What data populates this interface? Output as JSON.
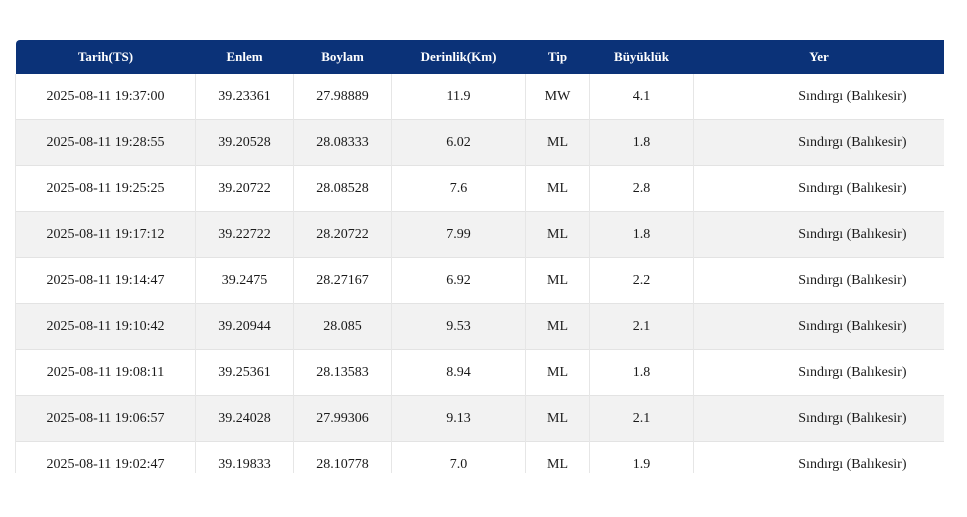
{
  "table": {
    "headers": [
      "Tarih(TS)",
      "Enlem",
      "Boylam",
      "Derinlik(Km)",
      "Tip",
      "Büyüklük",
      "Yer"
    ],
    "rows": [
      [
        "2025-08-11 19:37:00",
        "39.23361",
        "27.98889",
        "11.9",
        "MW",
        "4.1",
        "Sındırgı (Balıkesir)"
      ],
      [
        "2025-08-11 19:28:55",
        "39.20528",
        "28.08333",
        "6.02",
        "ML",
        "1.8",
        "Sındırgı (Balıkesir)"
      ],
      [
        "2025-08-11 19:25:25",
        "39.20722",
        "28.08528",
        "7.6",
        "ML",
        "2.8",
        "Sındırgı (Balıkesir)"
      ],
      [
        "2025-08-11 19:17:12",
        "39.22722",
        "28.20722",
        "7.99",
        "ML",
        "1.8",
        "Sındırgı (Balıkesir)"
      ],
      [
        "2025-08-11 19:14:47",
        "39.2475",
        "28.27167",
        "6.92",
        "ML",
        "2.2",
        "Sındırgı (Balıkesir)"
      ],
      [
        "2025-08-11 19:10:42",
        "39.20944",
        "28.085",
        "9.53",
        "ML",
        "2.1",
        "Sındırgı (Balıkesir)"
      ],
      [
        "2025-08-11 19:08:11",
        "39.25361",
        "28.13583",
        "8.94",
        "ML",
        "1.8",
        "Sındırgı (Balıkesir)"
      ],
      [
        "2025-08-11 19:06:57",
        "39.24028",
        "27.99306",
        "9.13",
        "ML",
        "2.1",
        "Sındırgı (Balıkesir)"
      ],
      [
        "2025-08-11 19:02:47",
        "39.19833",
        "28.10778",
        "7.0",
        "ML",
        "1.9",
        "Sındırgı (Balıkesir)"
      ]
    ]
  },
  "colors": {
    "header_bg": "#0b3278",
    "header_text": "#ffffff",
    "row_alt_bg": "#f2f2f2"
  }
}
